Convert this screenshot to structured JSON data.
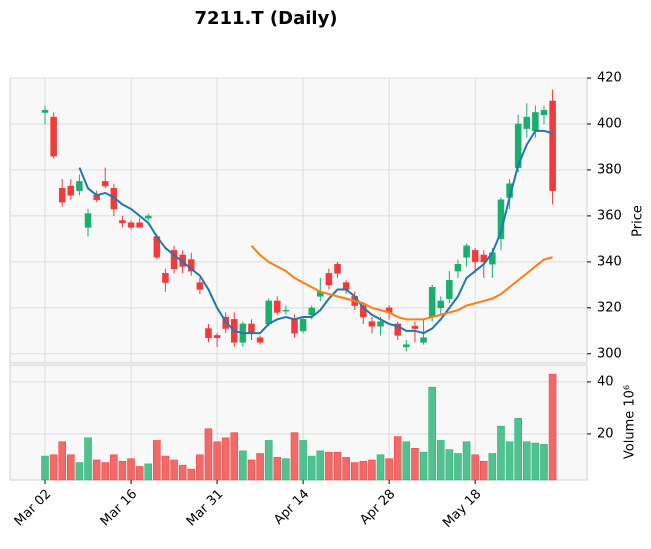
{
  "chart_data": {
    "type": "candlestick",
    "title": "7211.T (Daily)",
    "ylabel": "Price",
    "y2label": "Volume  10⁶",
    "xlim": [
      -4.07,
      63
    ],
    "xticks": [
      {
        "value": 0,
        "label": "Mar 02"
      },
      {
        "value": 10,
        "label": "Mar 16"
      },
      {
        "value": 20,
        "label": "Mar 31"
      },
      {
        "value": 30,
        "label": "Apr 14"
      },
      {
        "value": 40,
        "label": "Apr 28"
      },
      {
        "value": 50,
        "label": "May 18"
      }
    ],
    "ylim": [
      296,
      420
    ],
    "yticks": [
      300,
      320,
      340,
      360,
      380,
      400,
      420
    ],
    "y2lim": [
      2.3,
      46.5
    ],
    "y2ticks": [
      20,
      40
    ],
    "grid": true,
    "up_color": "#1aaf6c",
    "down_color": "#ef3b3b",
    "open": [
      405,
      403,
      372,
      373,
      371,
      355,
      369,
      375,
      372,
      358,
      357,
      357,
      359,
      351,
      335,
      345,
      343,
      341,
      331,
      311,
      308,
      316,
      315,
      305,
      313,
      307,
      313,
      323,
      319,
      315,
      310,
      317,
      325,
      335,
      339,
      331,
      325,
      321,
      314,
      312,
      320,
      313,
      303,
      312,
      305,
      316,
      320,
      324,
      336,
      342,
      345,
      343,
      339,
      350,
      368,
      381,
      398,
      397,
      404,
      410
    ],
    "high": [
      408,
      405,
      376,
      376,
      378,
      363,
      371,
      381,
      374,
      360,
      358,
      359,
      361,
      352,
      337,
      347,
      345,
      344,
      333,
      313,
      309,
      318,
      318,
      314,
      315,
      308,
      324,
      325,
      321,
      317,
      316,
      321,
      333,
      337,
      340,
      332,
      327,
      322,
      316,
      316,
      321,
      314,
      306,
      314,
      315,
      330,
      325,
      336,
      341,
      348,
      346,
      345,
      346,
      368,
      376,
      404,
      409,
      408,
      408,
      415
    ],
    "low": [
      400,
      385,
      364,
      367,
      369,
      351,
      366,
      372,
      360,
      355,
      354,
      355,
      358,
      341,
      327,
      335,
      335,
      334,
      326,
      305,
      303,
      309,
      303,
      303,
      306,
      304,
      312,
      317,
      317,
      307,
      309,
      315,
      323,
      328,
      333,
      326,
      319,
      313,
      309,
      308,
      315,
      306,
      301,
      305,
      304,
      314,
      317,
      322,
      333,
      338,
      335,
      333,
      333,
      345,
      363,
      379,
      394,
      394,
      400,
      365
    ],
    "close": [
      406,
      386,
      366,
      369,
      375,
      361,
      367,
      373,
      363,
      357,
      355,
      355,
      360,
      342,
      331,
      337,
      338,
      336,
      328,
      307,
      307,
      311,
      305,
      313,
      309,
      305,
      323,
      318,
      319,
      309,
      315,
      320,
      327,
      330,
      335,
      328,
      321,
      316,
      312,
      314,
      318,
      308,
      304,
      311,
      307,
      329,
      323,
      332,
      339,
      347,
      340,
      340,
      344,
      367,
      374,
      400,
      403,
      405,
      406,
      371
    ],
    "volume": [
      11.5,
      12,
      17,
      12,
      9,
      18.5,
      10,
      9,
      12,
      9.5,
      10.5,
      7.5,
      8.5,
      17.5,
      11.5,
      10,
      8,
      6.5,
      12,
      22,
      17,
      18.5,
      20.5,
      13.5,
      10,
      12.5,
      17.5,
      11,
      10.5,
      20.5,
      17.5,
      11.5,
      13.5,
      13,
      13,
      11,
      9,
      9.5,
      10,
      12,
      10.5,
      19,
      17,
      14.5,
      13,
      38,
      17.5,
      14,
      12.5,
      17,
      12,
      9.5,
      12.5,
      23,
      17,
      26,
      17,
      16.5,
      16,
      43
    ],
    "series": [
      {
        "color": "#1f77b4",
        "values": [
          null,
          null,
          null,
          null,
          381,
          372,
          369,
          370,
          368,
          365,
          363,
          360,
          357,
          351,
          346,
          343,
          340,
          337,
          334,
          328,
          320,
          314,
          310,
          309,
          309,
          309,
          313,
          315,
          316,
          315,
          316,
          316,
          319,
          324,
          328,
          328,
          325,
          320,
          317,
          315,
          313,
          312,
          310,
          310,
          309,
          311,
          315,
          320,
          325,
          333,
          336,
          339,
          344,
          353,
          368,
          382,
          391,
          397,
          397,
          396
        ]
      },
      {
        "color": "#ff7f0e",
        "values": [
          null,
          null,
          null,
          null,
          null,
          null,
          null,
          null,
          null,
          null,
          null,
          null,
          null,
          null,
          null,
          null,
          null,
          null,
          null,
          null,
          null,
          null,
          null,
          null,
          347,
          343,
          340,
          338,
          336,
          333,
          331,
          329,
          327,
          326,
          325,
          324,
          323,
          322,
          320,
          319,
          318,
          316,
          315,
          315,
          315,
          316,
          317,
          318,
          319,
          321,
          322,
          323,
          324,
          326,
          329,
          332,
          335,
          338,
          341,
          342
        ]
      }
    ]
  }
}
